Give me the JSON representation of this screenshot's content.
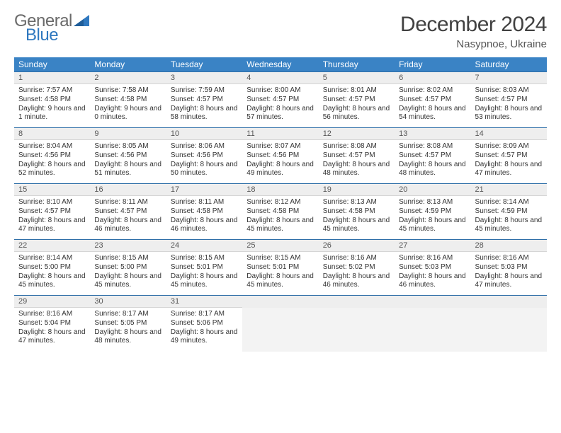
{
  "logo": {
    "general": "General",
    "blue": "Blue"
  },
  "title": "December 2024",
  "subtitle": "Nasypnoe, Ukraine",
  "colors": {
    "header_bg": "#3a83c5",
    "header_text": "#ffffff",
    "numrow_bg": "#eeeeee",
    "numrow_border_top": "#2f6fa8",
    "logo_gray": "#6a6a6a",
    "logo_blue": "#2f78bf",
    "title_color": "#414141",
    "body_text": "#333333"
  },
  "typography": {
    "title_fontsize": 30,
    "subtitle_fontsize": 15,
    "dayhead_fontsize": 12,
    "daynum_fontsize": 11,
    "cell_fontsize": 10
  },
  "day_names": [
    "Sunday",
    "Monday",
    "Tuesday",
    "Wednesday",
    "Thursday",
    "Friday",
    "Saturday"
  ],
  "weeks": [
    {
      "numbers": [
        "1",
        "2",
        "3",
        "4",
        "5",
        "6",
        "7"
      ],
      "cells": [
        {
          "sunrise": "7:57 AM",
          "sunset": "4:58 PM",
          "daylight": "9 hours and 1 minute."
        },
        {
          "sunrise": "7:58 AM",
          "sunset": "4:58 PM",
          "daylight": "9 hours and 0 minutes."
        },
        {
          "sunrise": "7:59 AM",
          "sunset": "4:57 PM",
          "daylight": "8 hours and 58 minutes."
        },
        {
          "sunrise": "8:00 AM",
          "sunset": "4:57 PM",
          "daylight": "8 hours and 57 minutes."
        },
        {
          "sunrise": "8:01 AM",
          "sunset": "4:57 PM",
          "daylight": "8 hours and 56 minutes."
        },
        {
          "sunrise": "8:02 AM",
          "sunset": "4:57 PM",
          "daylight": "8 hours and 54 minutes."
        },
        {
          "sunrise": "8:03 AM",
          "sunset": "4:57 PM",
          "daylight": "8 hours and 53 minutes."
        }
      ]
    },
    {
      "numbers": [
        "8",
        "9",
        "10",
        "11",
        "12",
        "13",
        "14"
      ],
      "cells": [
        {
          "sunrise": "8:04 AM",
          "sunset": "4:56 PM",
          "daylight": "8 hours and 52 minutes."
        },
        {
          "sunrise": "8:05 AM",
          "sunset": "4:56 PM",
          "daylight": "8 hours and 51 minutes."
        },
        {
          "sunrise": "8:06 AM",
          "sunset": "4:56 PM",
          "daylight": "8 hours and 50 minutes."
        },
        {
          "sunrise": "8:07 AM",
          "sunset": "4:56 PM",
          "daylight": "8 hours and 49 minutes."
        },
        {
          "sunrise": "8:08 AM",
          "sunset": "4:57 PM",
          "daylight": "8 hours and 48 minutes."
        },
        {
          "sunrise": "8:08 AM",
          "sunset": "4:57 PM",
          "daylight": "8 hours and 48 minutes."
        },
        {
          "sunrise": "8:09 AM",
          "sunset": "4:57 PM",
          "daylight": "8 hours and 47 minutes."
        }
      ]
    },
    {
      "numbers": [
        "15",
        "16",
        "17",
        "18",
        "19",
        "20",
        "21"
      ],
      "cells": [
        {
          "sunrise": "8:10 AM",
          "sunset": "4:57 PM",
          "daylight": "8 hours and 47 minutes."
        },
        {
          "sunrise": "8:11 AM",
          "sunset": "4:57 PM",
          "daylight": "8 hours and 46 minutes."
        },
        {
          "sunrise": "8:11 AM",
          "sunset": "4:58 PM",
          "daylight": "8 hours and 46 minutes."
        },
        {
          "sunrise": "8:12 AM",
          "sunset": "4:58 PM",
          "daylight": "8 hours and 45 minutes."
        },
        {
          "sunrise": "8:13 AM",
          "sunset": "4:58 PM",
          "daylight": "8 hours and 45 minutes."
        },
        {
          "sunrise": "8:13 AM",
          "sunset": "4:59 PM",
          "daylight": "8 hours and 45 minutes."
        },
        {
          "sunrise": "8:14 AM",
          "sunset": "4:59 PM",
          "daylight": "8 hours and 45 minutes."
        }
      ]
    },
    {
      "numbers": [
        "22",
        "23",
        "24",
        "25",
        "26",
        "27",
        "28"
      ],
      "cells": [
        {
          "sunrise": "8:14 AM",
          "sunset": "5:00 PM",
          "daylight": "8 hours and 45 minutes."
        },
        {
          "sunrise": "8:15 AM",
          "sunset": "5:00 PM",
          "daylight": "8 hours and 45 minutes."
        },
        {
          "sunrise": "8:15 AM",
          "sunset": "5:01 PM",
          "daylight": "8 hours and 45 minutes."
        },
        {
          "sunrise": "8:15 AM",
          "sunset": "5:01 PM",
          "daylight": "8 hours and 45 minutes."
        },
        {
          "sunrise": "8:16 AM",
          "sunset": "5:02 PM",
          "daylight": "8 hours and 46 minutes."
        },
        {
          "sunrise": "8:16 AM",
          "sunset": "5:03 PM",
          "daylight": "8 hours and 46 minutes."
        },
        {
          "sunrise": "8:16 AM",
          "sunset": "5:03 PM",
          "daylight": "8 hours and 47 minutes."
        }
      ]
    },
    {
      "numbers": [
        "29",
        "30",
        "31",
        "",
        "",
        "",
        ""
      ],
      "cells": [
        {
          "sunrise": "8:16 AM",
          "sunset": "5:04 PM",
          "daylight": "8 hours and 47 minutes."
        },
        {
          "sunrise": "8:17 AM",
          "sunset": "5:05 PM",
          "daylight": "8 hours and 48 minutes."
        },
        {
          "sunrise": "8:17 AM",
          "sunset": "5:06 PM",
          "daylight": "8 hours and 49 minutes."
        },
        null,
        null,
        null,
        null
      ]
    }
  ],
  "labels": {
    "sunrise": "Sunrise: ",
    "sunset": "Sunset: ",
    "daylight": "Daylight: "
  }
}
